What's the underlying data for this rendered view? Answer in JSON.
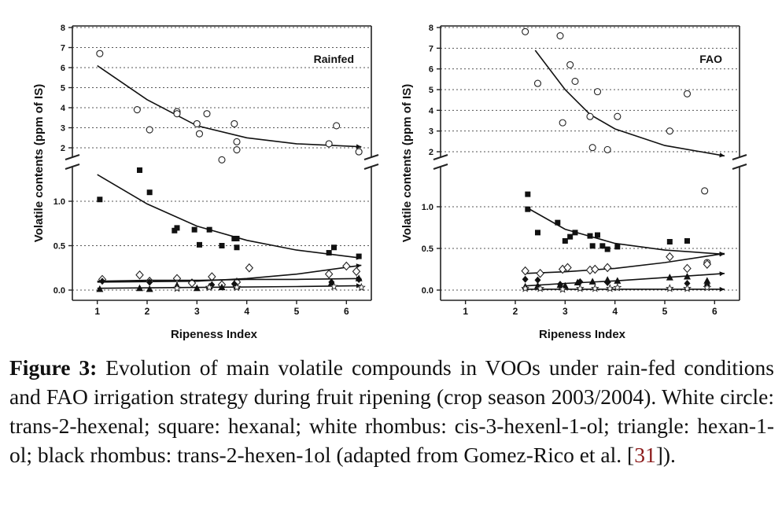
{
  "caption": {
    "label": "Figure 3:",
    "text_before_ref": " Evolution of main volatile compounds in VOOs under rain-fed conditions and FAO irrigation strategy during fruit ripening (crop season 2003/2004). White circle: trans-2-hexenal; square: hexanal; white rhombus: cis-3-hexenl-1-ol; triangle: hexan-1-ol; black rhombus: trans-2-hexen-1ol (adapted from Gomez-Rico et al. [",
    "ref": "31",
    "text_after_ref": "])."
  },
  "chart_data": [
    {
      "type": "scatter",
      "title": "Rainfed",
      "xlabel": "Ripeness Index",
      "ylabel": "Volatile contents (ppm of IS)",
      "xlim": [
        0.5,
        6.5
      ],
      "x_ticks": [
        "1",
        "2",
        "3",
        "4",
        "5",
        "6"
      ],
      "broken_y_axis": true,
      "upper_ylim": [
        1.5,
        8
      ],
      "upper_y_ticks": [
        "2",
        "3",
        "4",
        "5",
        "6",
        "7",
        "8"
      ],
      "lower_ylim": [
        -0.1,
        1.35
      ],
      "lower_y_ticks": [
        "0.0",
        "0.5",
        "1.0"
      ],
      "grid": "dotted horizontal",
      "series": [
        {
          "marker": "open-circle",
          "panel": "upper",
          "points": [
            [
              1.05,
              6.7
            ],
            [
              1.8,
              3.9
            ],
            [
              2.05,
              2.9
            ],
            [
              2.6,
              3.8
            ],
            [
              2.6,
              3.7
            ],
            [
              3.0,
              3.2
            ],
            [
              3.05,
              2.7
            ],
            [
              3.2,
              3.7
            ],
            [
              3.5,
              1.4
            ],
            [
              3.75,
              3.2
            ],
            [
              3.8,
              2.3
            ],
            [
              3.8,
              1.9
            ],
            [
              5.65,
              2.2
            ],
            [
              5.8,
              3.1
            ],
            [
              6.25,
              1.8
            ]
          ],
          "fit": [
            [
              1.0,
              6.1
            ],
            [
              2.0,
              4.4
            ],
            [
              3.0,
              3.1
            ],
            [
              4.0,
              2.5
            ],
            [
              5.0,
              2.2
            ],
            [
              6.3,
              2.05
            ]
          ]
        },
        {
          "marker": "filled-square",
          "panel": "lower",
          "points": [
            [
              1.05,
              1.02
            ],
            [
              1.85,
              1.35
            ],
            [
              2.05,
              1.1
            ],
            [
              2.55,
              0.67
            ],
            [
              2.6,
              0.7
            ],
            [
              2.95,
              0.68
            ],
            [
              3.05,
              0.51
            ],
            [
              3.25,
              0.68
            ],
            [
              3.5,
              0.5
            ],
            [
              3.75,
              0.58
            ],
            [
              3.8,
              0.58
            ],
            [
              3.8,
              0.48
            ],
            [
              5.65,
              0.42
            ],
            [
              5.75,
              0.48
            ],
            [
              6.25,
              0.38
            ]
          ],
          "fit": [
            [
              1.0,
              1.3
            ],
            [
              2.0,
              0.97
            ],
            [
              3.0,
              0.72
            ],
            [
              4.0,
              0.56
            ],
            [
              5.0,
              0.45
            ],
            [
              6.3,
              0.36
            ]
          ]
        },
        {
          "marker": "open-rhombus",
          "panel": "lower",
          "points": [
            [
              1.1,
              0.12
            ],
            [
              1.85,
              0.17
            ],
            [
              2.05,
              0.1
            ],
            [
              2.6,
              0.13
            ],
            [
              2.9,
              0.08
            ],
            [
              3.3,
              0.15
            ],
            [
              3.5,
              0.06
            ],
            [
              3.8,
              0.09
            ],
            [
              4.05,
              0.25
            ],
            [
              5.65,
              0.18
            ],
            [
              6.0,
              0.27
            ],
            [
              6.2,
              0.21
            ]
          ],
          "fit": [
            [
              1.0,
              0.09
            ],
            [
              3.0,
              0.1
            ],
            [
              4.0,
              0.13
            ],
            [
              5.0,
              0.18
            ],
            [
              6.3,
              0.28
            ]
          ]
        },
        {
          "marker": "filled-triangle",
          "panel": "lower",
          "points": [
            [
              1.05,
              0.01
            ],
            [
              1.85,
              0.02
            ],
            [
              2.05,
              0.01
            ],
            [
              2.6,
              0.05
            ],
            [
              3.0,
              0.02
            ],
            [
              3.25,
              0.04
            ],
            [
              3.5,
              0.03
            ],
            [
              3.8,
              0.04
            ],
            [
              5.7,
              0.08
            ],
            [
              6.25,
              0.13
            ]
          ],
          "fit": [
            [
              1.0,
              0.1
            ],
            [
              2.0,
              0.11
            ],
            [
              3.0,
              0.11
            ],
            [
              4.0,
              0.12
            ],
            [
              5.0,
              0.12
            ],
            [
              6.3,
              0.13
            ]
          ]
        },
        {
          "marker": "filled-rhombus",
          "panel": "lower",
          "points": [
            [
              1.1,
              0.1
            ],
            [
              2.05,
              0.09
            ],
            [
              3.3,
              0.06
            ],
            [
              3.75,
              0.07
            ],
            [
              5.7,
              0.09
            ],
            [
              6.25,
              0.12
            ]
          ],
          "fit": [
            [
              1.0,
              0.02
            ],
            [
              3.0,
              0.03
            ],
            [
              5.0,
              0.04
            ],
            [
              6.3,
              0.05
            ]
          ]
        },
        {
          "marker": "open-star",
          "panel": "lower",
          "points": [
            [
              2.6,
              0.02
            ],
            [
              3.25,
              0.03
            ],
            [
              3.8,
              0.03
            ],
            [
              5.75,
              0.04
            ],
            [
              6.3,
              0.03
            ]
          ],
          "fit": []
        }
      ]
    },
    {
      "type": "scatter",
      "title": "FAO",
      "xlabel": "Ripeness Index",
      "ylabel": "Volatile contents (ppm of IS)",
      "xlim": [
        0.5,
        6.5
      ],
      "x_ticks": [
        "1",
        "2",
        "3",
        "4",
        "5",
        "6"
      ],
      "broken_y_axis": true,
      "upper_ylim": [
        1.5,
        8
      ],
      "upper_y_ticks": [
        "2",
        "3",
        "4",
        "5",
        "6",
        "7",
        "8"
      ],
      "lower_ylim": [
        -0.1,
        1.35
      ],
      "lower_y_ticks": [
        "0.0",
        "0.5",
        "1.0"
      ],
      "grid": "dotted horizontal",
      "series": [
        {
          "marker": "open-circle",
          "panel": "upper",
          "points": [
            [
              2.2,
              7.8
            ],
            [
              2.45,
              5.3
            ],
            [
              2.9,
              7.6
            ],
            [
              2.95,
              3.4
            ],
            [
              3.1,
              6.2
            ],
            [
              3.2,
              5.4
            ],
            [
              3.5,
              3.7
            ],
            [
              3.55,
              2.2
            ],
            [
              3.65,
              4.9
            ],
            [
              3.85,
              2.1
            ],
            [
              4.05,
              3.7
            ],
            [
              5.1,
              3.0
            ],
            [
              5.45,
              4.8
            ]
          ],
          "fit": [
            [
              2.4,
              6.9
            ],
            [
              3.0,
              5.0
            ],
            [
              3.5,
              3.8
            ],
            [
              4.0,
              3.1
            ],
            [
              5.0,
              2.3
            ],
            [
              6.2,
              1.8
            ]
          ]
        },
        {
          "marker": "open-circle",
          "panel": "lower",
          "points": [
            [
              5.8,
              1.19
            ],
            [
              5.85,
              0.33
            ]
          ],
          "fit": []
        },
        {
          "marker": "filled-square",
          "panel": "lower",
          "points": [
            [
              2.25,
              1.15
            ],
            [
              2.25,
              0.97
            ],
            [
              2.45,
              0.69
            ],
            [
              2.85,
              0.81
            ],
            [
              3.0,
              0.59
            ],
            [
              3.1,
              0.64
            ],
            [
              3.2,
              0.69
            ],
            [
              3.5,
              0.65
            ],
            [
              3.55,
              0.53
            ],
            [
              3.65,
              0.66
            ],
            [
              3.75,
              0.53
            ],
            [
              3.85,
              0.49
            ],
            [
              4.05,
              0.52
            ],
            [
              5.1,
              0.58
            ],
            [
              5.45,
              0.59
            ]
          ],
          "fit": [
            [
              2.2,
              1.0
            ],
            [
              3.0,
              0.73
            ],
            [
              4.0,
              0.56
            ],
            [
              5.0,
              0.48
            ],
            [
              6.2,
              0.43
            ]
          ]
        },
        {
          "marker": "open-rhombus",
          "panel": "lower",
          "points": [
            [
              2.2,
              0.23
            ],
            [
              2.5,
              0.2
            ],
            [
              2.95,
              0.25
            ],
            [
              3.05,
              0.27
            ],
            [
              3.5,
              0.24
            ],
            [
              3.6,
              0.25
            ],
            [
              3.85,
              0.27
            ],
            [
              5.1,
              0.4
            ],
            [
              5.45,
              0.26
            ],
            [
              5.85,
              0.31
            ]
          ],
          "fit": [
            [
              2.2,
              0.2
            ],
            [
              3.0,
              0.22
            ],
            [
              4.0,
              0.26
            ],
            [
              5.0,
              0.33
            ],
            [
              6.2,
              0.44
            ]
          ]
        },
        {
          "marker": "filled-triangle",
          "panel": "lower",
          "points": [
            [
              2.2,
              0.04
            ],
            [
              2.45,
              0.05
            ],
            [
              2.9,
              0.06
            ],
            [
              3.0,
              0.05
            ],
            [
              3.25,
              0.09
            ],
            [
              3.55,
              0.1
            ],
            [
              3.85,
              0.12
            ],
            [
              4.05,
              0.11
            ],
            [
              5.1,
              0.15
            ],
            [
              5.45,
              0.16
            ],
            [
              5.85,
              0.11
            ]
          ],
          "fit": [
            [
              2.2,
              0.05
            ],
            [
              3.0,
              0.08
            ],
            [
              4.0,
              0.11
            ],
            [
              5.0,
              0.15
            ],
            [
              6.2,
              0.2
            ]
          ]
        },
        {
          "marker": "filled-rhombus",
          "panel": "lower",
          "points": [
            [
              2.2,
              0.13
            ],
            [
              2.45,
              0.12
            ],
            [
              2.9,
              0.07
            ],
            [
              3.3,
              0.1
            ],
            [
              3.85,
              0.09
            ],
            [
              5.45,
              0.08
            ],
            [
              5.85,
              0.06
            ]
          ],
          "fit": []
        },
        {
          "marker": "open-star",
          "panel": "lower",
          "points": [
            [
              2.2,
              0.02
            ],
            [
              2.5,
              0.02
            ],
            [
              2.95,
              0.01
            ],
            [
              3.3,
              0.02
            ],
            [
              3.6,
              0.02
            ],
            [
              3.9,
              0.02
            ],
            [
              4.05,
              0.03
            ],
            [
              5.1,
              0.02
            ],
            [
              5.45,
              0.02
            ],
            [
              5.85,
              0.03
            ]
          ],
          "fit": [
            [
              2.2,
              0.01
            ],
            [
              4.0,
              0.01
            ],
            [
              6.2,
              0.01
            ]
          ]
        }
      ]
    }
  ]
}
